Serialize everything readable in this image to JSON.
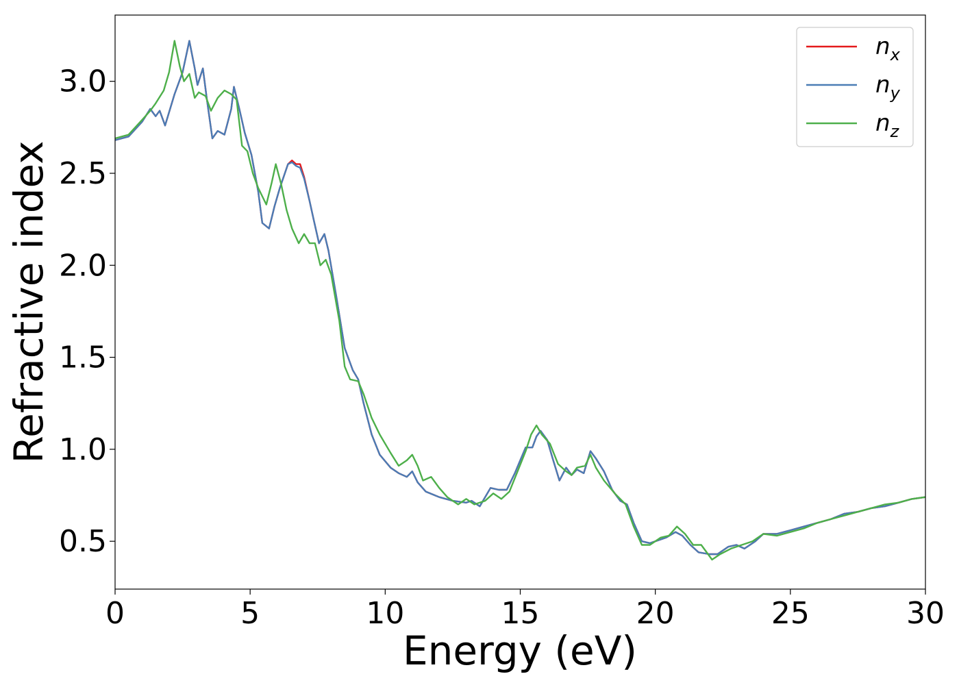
{
  "chart_data": {
    "type": "line",
    "xlabel": "Energy (eV)",
    "ylabel": "Refractive index",
    "xlim": [
      0,
      30
    ],
    "ylim": [
      0.24,
      3.36
    ],
    "x_ticks": [
      "0",
      "5",
      "10",
      "15",
      "20",
      "25",
      "30"
    ],
    "y_ticks": [
      "0.5",
      "1.0",
      "1.5",
      "2.0",
      "2.5",
      "3.0"
    ],
    "grid": false,
    "legend_position": "top-right",
    "series": [
      {
        "name": "n_x",
        "legend_base": "n",
        "legend_sub": "x",
        "color": "#e41a1c",
        "points": [
          [
            0,
            2.68
          ],
          [
            0.5,
            2.7
          ],
          [
            1.0,
            2.78
          ],
          [
            1.3,
            2.85
          ],
          [
            1.5,
            2.81
          ],
          [
            1.65,
            2.84
          ],
          [
            1.85,
            2.76
          ],
          [
            2.2,
            2.93
          ],
          [
            2.5,
            3.05
          ],
          [
            2.75,
            3.22
          ],
          [
            2.95,
            3.07
          ],
          [
            3.05,
            2.98
          ],
          [
            3.25,
            3.07
          ],
          [
            3.4,
            2.9
          ],
          [
            3.6,
            2.69
          ],
          [
            3.8,
            2.73
          ],
          [
            4.05,
            2.71
          ],
          [
            4.3,
            2.85
          ],
          [
            4.4,
            2.97
          ],
          [
            4.6,
            2.85
          ],
          [
            4.8,
            2.72
          ],
          [
            5.05,
            2.6
          ],
          [
            5.3,
            2.4
          ],
          [
            5.45,
            2.23
          ],
          [
            5.7,
            2.2
          ],
          [
            5.9,
            2.32
          ],
          [
            6.1,
            2.42
          ],
          [
            6.4,
            2.55
          ],
          [
            6.55,
            2.57
          ],
          [
            6.7,
            2.55
          ],
          [
            6.85,
            2.55
          ],
          [
            7.0,
            2.48
          ],
          [
            7.2,
            2.35
          ],
          [
            7.35,
            2.25
          ],
          [
            7.55,
            2.12
          ],
          [
            7.75,
            2.17
          ],
          [
            7.9,
            2.08
          ],
          [
            8.2,
            1.82
          ],
          [
            8.5,
            1.55
          ],
          [
            8.8,
            1.43
          ],
          [
            9.0,
            1.38
          ],
          [
            9.2,
            1.25
          ],
          [
            9.5,
            1.08
          ],
          [
            9.8,
            0.97
          ],
          [
            10.2,
            0.9
          ],
          [
            10.5,
            0.87
          ],
          [
            10.8,
            0.85
          ],
          [
            11.0,
            0.88
          ],
          [
            11.2,
            0.82
          ],
          [
            11.5,
            0.77
          ],
          [
            12.0,
            0.74
          ],
          [
            12.5,
            0.72
          ],
          [
            13.0,
            0.71
          ],
          [
            13.2,
            0.72
          ],
          [
            13.5,
            0.69
          ],
          [
            13.9,
            0.79
          ],
          [
            14.2,
            0.78
          ],
          [
            14.5,
            0.78
          ],
          [
            14.8,
            0.87
          ],
          [
            15.0,
            0.94
          ],
          [
            15.2,
            1.01
          ],
          [
            15.45,
            1.01
          ],
          [
            15.6,
            1.07
          ],
          [
            15.75,
            1.1
          ],
          [
            16.0,
            1.05
          ],
          [
            16.2,
            0.95
          ],
          [
            16.45,
            0.83
          ],
          [
            16.7,
            0.9
          ],
          [
            16.9,
            0.86
          ],
          [
            17.1,
            0.89
          ],
          [
            17.35,
            0.87
          ],
          [
            17.6,
            0.99
          ],
          [
            17.8,
            0.95
          ],
          [
            18.1,
            0.88
          ],
          [
            18.4,
            0.78
          ],
          [
            18.7,
            0.72
          ],
          [
            18.95,
            0.7
          ],
          [
            19.2,
            0.6
          ],
          [
            19.5,
            0.5
          ],
          [
            19.8,
            0.49
          ],
          [
            20.2,
            0.51
          ],
          [
            20.4,
            0.52
          ],
          [
            20.75,
            0.55
          ],
          [
            21.0,
            0.53
          ],
          [
            21.3,
            0.48
          ],
          [
            21.6,
            0.44
          ],
          [
            22.0,
            0.43
          ],
          [
            22.3,
            0.43
          ],
          [
            22.7,
            0.47
          ],
          [
            23.0,
            0.48
          ],
          [
            23.3,
            0.46
          ],
          [
            23.7,
            0.5
          ],
          [
            24.0,
            0.54
          ],
          [
            24.5,
            0.54
          ],
          [
            25.0,
            0.56
          ],
          [
            25.5,
            0.58
          ],
          [
            26.0,
            0.6
          ],
          [
            26.5,
            0.62
          ],
          [
            27.0,
            0.65
          ],
          [
            27.5,
            0.66
          ],
          [
            28.0,
            0.68
          ],
          [
            28.5,
            0.69
          ],
          [
            29.0,
            0.71
          ],
          [
            29.5,
            0.73
          ],
          [
            30.0,
            0.74
          ]
        ]
      },
      {
        "name": "n_y",
        "legend_base": "n",
        "legend_sub": "y",
        "color": "#4a7cb5",
        "points": [
          [
            0,
            2.68
          ],
          [
            0.5,
            2.7
          ],
          [
            1.0,
            2.78
          ],
          [
            1.3,
            2.85
          ],
          [
            1.5,
            2.81
          ],
          [
            1.65,
            2.84
          ],
          [
            1.85,
            2.76
          ],
          [
            2.2,
            2.93
          ],
          [
            2.5,
            3.05
          ],
          [
            2.75,
            3.22
          ],
          [
            2.95,
            3.07
          ],
          [
            3.05,
            2.98
          ],
          [
            3.25,
            3.07
          ],
          [
            3.4,
            2.9
          ],
          [
            3.6,
            2.69
          ],
          [
            3.8,
            2.73
          ],
          [
            4.05,
            2.71
          ],
          [
            4.3,
            2.85
          ],
          [
            4.4,
            2.97
          ],
          [
            4.6,
            2.85
          ],
          [
            4.8,
            2.72
          ],
          [
            5.05,
            2.6
          ],
          [
            5.3,
            2.4
          ],
          [
            5.45,
            2.23
          ],
          [
            5.7,
            2.2
          ],
          [
            5.9,
            2.32
          ],
          [
            6.1,
            2.42
          ],
          [
            6.4,
            2.55
          ],
          [
            6.55,
            2.56
          ],
          [
            6.7,
            2.54
          ],
          [
            6.85,
            2.53
          ],
          [
            7.0,
            2.47
          ],
          [
            7.2,
            2.35
          ],
          [
            7.35,
            2.25
          ],
          [
            7.55,
            2.12
          ],
          [
            7.75,
            2.17
          ],
          [
            7.9,
            2.08
          ],
          [
            8.2,
            1.82
          ],
          [
            8.5,
            1.55
          ],
          [
            8.8,
            1.43
          ],
          [
            9.0,
            1.38
          ],
          [
            9.2,
            1.25
          ],
          [
            9.5,
            1.08
          ],
          [
            9.8,
            0.97
          ],
          [
            10.2,
            0.9
          ],
          [
            10.5,
            0.87
          ],
          [
            10.8,
            0.85
          ],
          [
            11.0,
            0.88
          ],
          [
            11.2,
            0.82
          ],
          [
            11.5,
            0.77
          ],
          [
            12.0,
            0.74
          ],
          [
            12.5,
            0.72
          ],
          [
            13.0,
            0.71
          ],
          [
            13.2,
            0.72
          ],
          [
            13.5,
            0.69
          ],
          [
            13.9,
            0.79
          ],
          [
            14.2,
            0.78
          ],
          [
            14.5,
            0.78
          ],
          [
            14.8,
            0.87
          ],
          [
            15.0,
            0.94
          ],
          [
            15.2,
            1.01
          ],
          [
            15.45,
            1.01
          ],
          [
            15.6,
            1.07
          ],
          [
            15.75,
            1.1
          ],
          [
            16.0,
            1.05
          ],
          [
            16.2,
            0.95
          ],
          [
            16.45,
            0.83
          ],
          [
            16.7,
            0.9
          ],
          [
            16.9,
            0.86
          ],
          [
            17.1,
            0.89
          ],
          [
            17.35,
            0.87
          ],
          [
            17.6,
            0.99
          ],
          [
            17.8,
            0.95
          ],
          [
            18.1,
            0.88
          ],
          [
            18.4,
            0.78
          ],
          [
            18.7,
            0.72
          ],
          [
            18.95,
            0.7
          ],
          [
            19.2,
            0.6
          ],
          [
            19.5,
            0.5
          ],
          [
            19.8,
            0.49
          ],
          [
            20.2,
            0.51
          ],
          [
            20.4,
            0.52
          ],
          [
            20.75,
            0.55
          ],
          [
            21.0,
            0.53
          ],
          [
            21.3,
            0.48
          ],
          [
            21.6,
            0.44
          ],
          [
            22.0,
            0.43
          ],
          [
            22.3,
            0.43
          ],
          [
            22.7,
            0.47
          ],
          [
            23.0,
            0.48
          ],
          [
            23.3,
            0.46
          ],
          [
            23.7,
            0.5
          ],
          [
            24.0,
            0.54
          ],
          [
            24.5,
            0.54
          ],
          [
            25.0,
            0.56
          ],
          [
            25.5,
            0.58
          ],
          [
            26.0,
            0.6
          ],
          [
            26.5,
            0.62
          ],
          [
            27.0,
            0.65
          ],
          [
            27.5,
            0.66
          ],
          [
            28.0,
            0.68
          ],
          [
            28.5,
            0.69
          ],
          [
            29.0,
            0.71
          ],
          [
            29.5,
            0.73
          ],
          [
            30.0,
            0.74
          ]
        ]
      },
      {
        "name": "n_z",
        "legend_base": "n",
        "legend_sub": "z",
        "color": "#4daf4a",
        "points": [
          [
            0,
            2.69
          ],
          [
            0.5,
            2.71
          ],
          [
            1.0,
            2.79
          ],
          [
            1.3,
            2.84
          ],
          [
            1.5,
            2.88
          ],
          [
            1.8,
            2.95
          ],
          [
            2.0,
            3.05
          ],
          [
            2.2,
            3.22
          ],
          [
            2.4,
            3.08
          ],
          [
            2.55,
            3.0
          ],
          [
            2.75,
            3.04
          ],
          [
            2.95,
            2.91
          ],
          [
            3.1,
            2.94
          ],
          [
            3.35,
            2.92
          ],
          [
            3.55,
            2.84
          ],
          [
            3.8,
            2.91
          ],
          [
            4.05,
            2.95
          ],
          [
            4.3,
            2.93
          ],
          [
            4.5,
            2.9
          ],
          [
            4.7,
            2.65
          ],
          [
            4.9,
            2.62
          ],
          [
            5.1,
            2.5
          ],
          [
            5.3,
            2.42
          ],
          [
            5.6,
            2.33
          ],
          [
            5.8,
            2.45
          ],
          [
            5.95,
            2.55
          ],
          [
            6.15,
            2.44
          ],
          [
            6.35,
            2.3
          ],
          [
            6.55,
            2.2
          ],
          [
            6.8,
            2.12
          ],
          [
            7.0,
            2.17
          ],
          [
            7.2,
            2.12
          ],
          [
            7.4,
            2.12
          ],
          [
            7.6,
            2.0
          ],
          [
            7.8,
            2.03
          ],
          [
            8.0,
            1.95
          ],
          [
            8.3,
            1.7
          ],
          [
            8.5,
            1.45
          ],
          [
            8.7,
            1.38
          ],
          [
            9.0,
            1.37
          ],
          [
            9.2,
            1.3
          ],
          [
            9.5,
            1.17
          ],
          [
            9.8,
            1.08
          ],
          [
            10.2,
            0.98
          ],
          [
            10.5,
            0.91
          ],
          [
            10.8,
            0.94
          ],
          [
            11.0,
            0.97
          ],
          [
            11.2,
            0.91
          ],
          [
            11.4,
            0.83
          ],
          [
            11.7,
            0.85
          ],
          [
            12.0,
            0.79
          ],
          [
            12.3,
            0.74
          ],
          [
            12.7,
            0.7
          ],
          [
            13.0,
            0.73
          ],
          [
            13.3,
            0.7
          ],
          [
            13.7,
            0.72
          ],
          [
            14.0,
            0.76
          ],
          [
            14.3,
            0.73
          ],
          [
            14.6,
            0.77
          ],
          [
            14.9,
            0.88
          ],
          [
            15.2,
            0.99
          ],
          [
            15.4,
            1.08
          ],
          [
            15.6,
            1.13
          ],
          [
            15.8,
            1.08
          ],
          [
            16.1,
            1.03
          ],
          [
            16.4,
            0.92
          ],
          [
            16.7,
            0.88
          ],
          [
            16.9,
            0.86
          ],
          [
            17.1,
            0.9
          ],
          [
            17.4,
            0.91
          ],
          [
            17.6,
            0.97
          ],
          [
            17.8,
            0.9
          ],
          [
            18.1,
            0.83
          ],
          [
            18.5,
            0.76
          ],
          [
            18.9,
            0.7
          ],
          [
            19.2,
            0.58
          ],
          [
            19.5,
            0.48
          ],
          [
            19.8,
            0.48
          ],
          [
            20.2,
            0.52
          ],
          [
            20.5,
            0.53
          ],
          [
            20.8,
            0.58
          ],
          [
            21.1,
            0.54
          ],
          [
            21.4,
            0.48
          ],
          [
            21.7,
            0.48
          ],
          [
            22.1,
            0.4
          ],
          [
            22.4,
            0.43
          ],
          [
            22.8,
            0.46
          ],
          [
            23.2,
            0.48
          ],
          [
            23.6,
            0.5
          ],
          [
            24.0,
            0.54
          ],
          [
            24.5,
            0.53
          ],
          [
            25.0,
            0.55
          ],
          [
            25.5,
            0.57
          ],
          [
            26.0,
            0.6
          ],
          [
            26.5,
            0.62
          ],
          [
            27.0,
            0.64
          ],
          [
            27.5,
            0.66
          ],
          [
            28.0,
            0.68
          ],
          [
            28.5,
            0.7
          ],
          [
            29.0,
            0.71
          ],
          [
            29.5,
            0.73
          ],
          [
            30.0,
            0.74
          ]
        ]
      }
    ]
  }
}
